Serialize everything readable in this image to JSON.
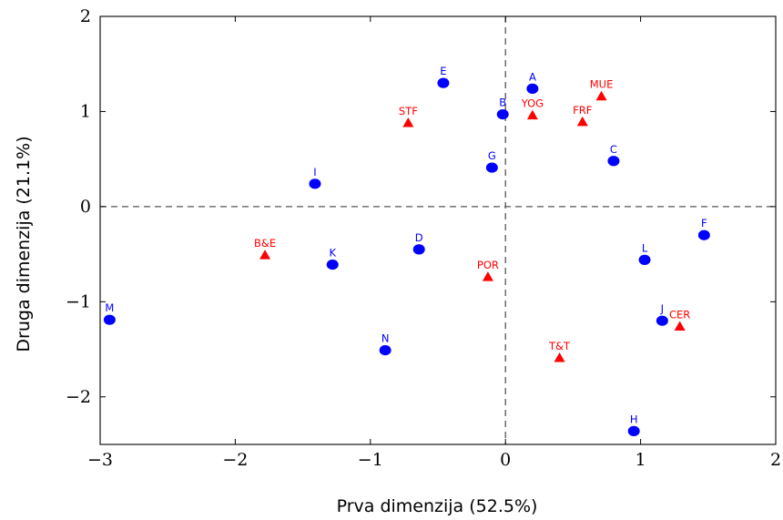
{
  "chart_data": {
    "type": "scatter",
    "title": "",
    "xlabel": "Prva dimenzija (52.5%)",
    "ylabel": "Druga dimenzija (21.1%)",
    "xlim": [
      -3,
      2
    ],
    "ylim": [
      -2.5,
      2
    ],
    "xticks": [
      -3,
      -2,
      -1,
      0,
      1,
      2
    ],
    "yticks": [
      -2,
      -1,
      0,
      1,
      2
    ],
    "xtick_labels": [
      "−3",
      "−2",
      "−1",
      "0",
      "1",
      "2"
    ],
    "ytick_labels": [
      "−2",
      "−1",
      "0",
      "1",
      "2"
    ],
    "reference_lines": {
      "x": 0,
      "y": 0,
      "style": "dashed"
    },
    "grid": false,
    "series": [
      {
        "marker": "circle",
        "color": "#0000ff",
        "points": [
          {
            "label": "A",
            "x": 0.2,
            "y": 1.24
          },
          {
            "label": "B",
            "x": -0.02,
            "y": 0.97
          },
          {
            "label": "C",
            "x": 0.8,
            "y": 0.48
          },
          {
            "label": "D",
            "x": -0.64,
            "y": -0.45
          },
          {
            "label": "E",
            "x": -0.46,
            "y": 1.3
          },
          {
            "label": "F",
            "x": 1.47,
            "y": -0.3
          },
          {
            "label": "G",
            "x": -0.1,
            "y": 0.41
          },
          {
            "label": "H",
            "x": 0.95,
            "y": -2.36
          },
          {
            "label": "I",
            "x": -1.41,
            "y": 0.24
          },
          {
            "label": "J",
            "x": 1.16,
            "y": -1.2
          },
          {
            "label": "K",
            "x": -1.28,
            "y": -0.61
          },
          {
            "label": "L",
            "x": 1.03,
            "y": -0.56
          },
          {
            "label": "M",
            "x": -2.93,
            "y": -1.19
          },
          {
            "label": "N",
            "x": -0.89,
            "y": -1.51
          }
        ]
      },
      {
        "marker": "triangle",
        "color": "#ff0000",
        "points": [
          {
            "label": "MUE",
            "x": 0.71,
            "y": 1.16
          },
          {
            "label": "YOG",
            "x": 0.2,
            "y": 0.96
          },
          {
            "label": "FRF",
            "x": 0.57,
            "y": 0.89
          },
          {
            "label": "STF",
            "x": -0.72,
            "y": 0.88
          },
          {
            "label": "B&E",
            "x": -1.78,
            "y": -0.51
          },
          {
            "label": "POR",
            "x": -0.13,
            "y": -0.74
          },
          {
            "label": "CER",
            "x": 1.29,
            "y": -1.26
          },
          {
            "label": "T&T",
            "x": 0.4,
            "y": -1.59
          }
        ]
      }
    ]
  }
}
